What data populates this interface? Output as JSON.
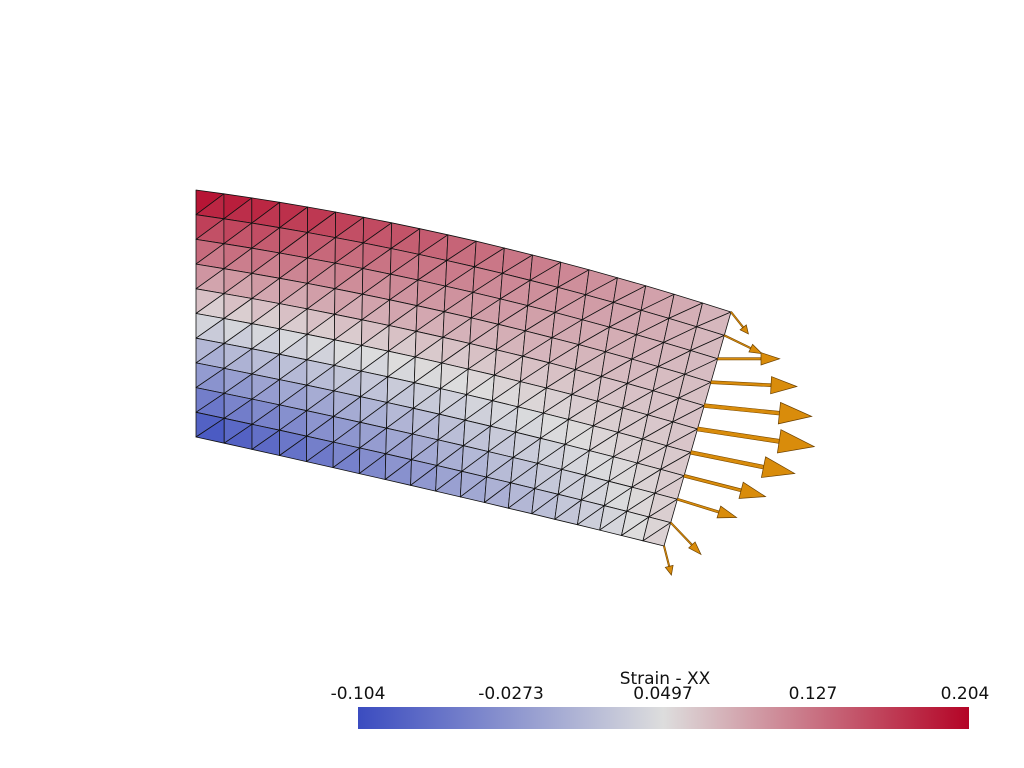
{
  "scalar_bar": {
    "title": "Strain - XX",
    "ticks": [
      "-0.104",
      "-0.0273",
      "0.0497",
      "0.127",
      "0.204"
    ],
    "range": [
      -0.104,
      0.204
    ],
    "colormap": [
      "#3b4cc0",
      "#dddddd",
      "#b40426"
    ]
  },
  "mesh": {
    "cells_x": 19,
    "cells_y": 10,
    "edge_color": "#111111"
  },
  "arrows": {
    "color": "#d98c0b",
    "count": 11
  }
}
